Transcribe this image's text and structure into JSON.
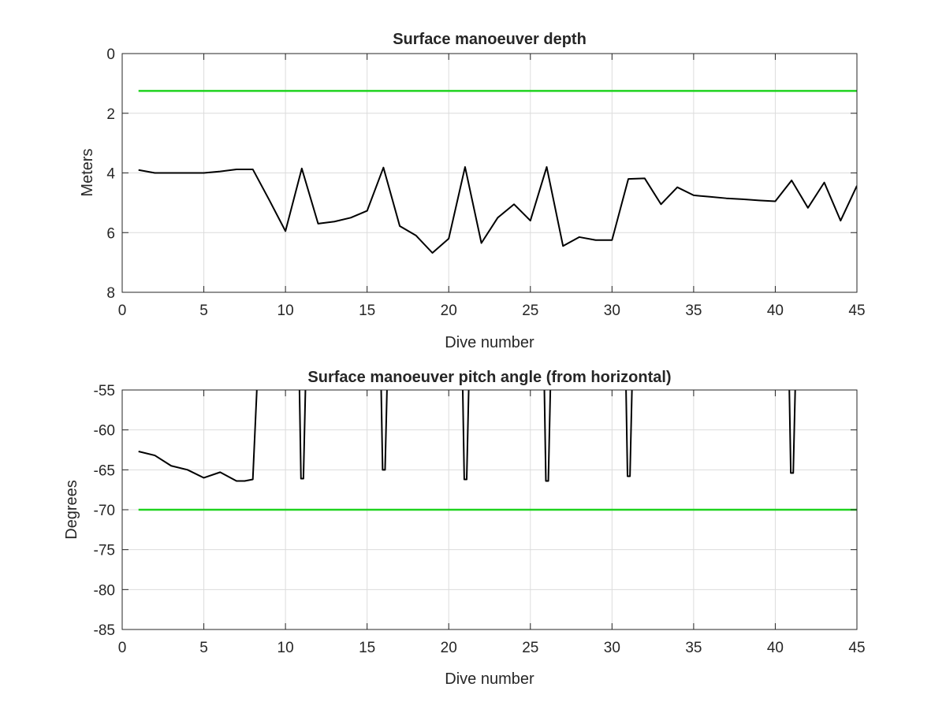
{
  "chart_data": [
    {
      "type": "line",
      "title": "Surface manoeuver depth",
      "xlabel": "Dive number",
      "ylabel": "Meters",
      "xlim": [
        0,
        45
      ],
      "ylim": [
        0,
        8
      ],
      "y_reversed": true,
      "xticks": [
        0,
        5,
        10,
        15,
        20,
        25,
        30,
        35,
        40,
        45
      ],
      "yticks": [
        0,
        2,
        4,
        6,
        8
      ],
      "grid": true,
      "series": [
        {
          "color": "#000000",
          "x": [
            1,
            2,
            3,
            4,
            5,
            6,
            7,
            8,
            9,
            10,
            11,
            12,
            13,
            14,
            15,
            16,
            17,
            18,
            19,
            20,
            21,
            22,
            23,
            24,
            25,
            26,
            27,
            28,
            29,
            30,
            31,
            32,
            33,
            34,
            35,
            36,
            37,
            38,
            39,
            40,
            41,
            42,
            43,
            44,
            45
          ],
          "y": [
            3.9,
            4.0,
            4.0,
            4.0,
            4.0,
            3.95,
            3.88,
            3.88,
            4.9,
            5.95,
            3.85,
            5.7,
            5.63,
            5.5,
            5.27,
            3.82,
            5.78,
            6.1,
            6.68,
            6.2,
            3.8,
            6.35,
            5.5,
            5.05,
            5.6,
            3.8,
            6.45,
            6.15,
            6.25,
            6.25,
            4.2,
            4.18,
            5.05,
            4.48,
            4.75,
            4.8,
            4.85,
            4.88,
            4.92,
            4.95,
            4.25,
            5.17,
            4.32,
            5.6,
            4.43
          ]
        },
        {
          "color": "#1fd31f",
          "x": [
            1,
            45
          ],
          "y": [
            1.25,
            1.25
          ]
        }
      ]
    },
    {
      "type": "line",
      "title": "Surface manoeuver pitch angle (from horizontal)",
      "xlabel": "Dive number",
      "ylabel": "Degrees",
      "xlim": [
        0,
        45
      ],
      "ylim": [
        -85,
        -55
      ],
      "xticks": [
        0,
        5,
        10,
        15,
        20,
        25,
        30,
        35,
        40,
        45
      ],
      "yticks": [
        -85,
        -80,
        -75,
        -70,
        -65,
        -60,
        -55
      ],
      "grid": true,
      "series": [
        {
          "color": "#000000",
          "x": [
            1,
            2,
            3,
            4,
            5,
            6,
            7,
            7.5,
            8,
            8.4,
            10.8,
            10.95,
            11.1,
            11.3,
            15.8,
            15.95,
            16.1,
            16.3,
            20.8,
            20.95,
            21.1,
            21.3,
            25.8,
            25.95,
            26.1,
            26.3,
            30.8,
            30.95,
            31.1,
            31.3,
            40.8,
            40.95,
            41.1,
            41.3
          ],
          "y": [
            -62.7,
            -63.2,
            -64.5,
            -65.0,
            -66.0,
            -65.3,
            -66.4,
            -66.4,
            -66.2,
            -48,
            -48,
            -66.1,
            -66.1,
            -48,
            -48,
            -65.0,
            -65.0,
            -48,
            -48,
            -66.2,
            -66.2,
            -48,
            -48,
            -66.4,
            -66.4,
            -48,
            -48,
            -65.8,
            -65.8,
            -48,
            -48,
            -65.4,
            -65.4,
            -48
          ]
        },
        {
          "color": "#1fd31f",
          "x": [
            1,
            45
          ],
          "y": [
            -70,
            -70
          ]
        }
      ]
    }
  ]
}
